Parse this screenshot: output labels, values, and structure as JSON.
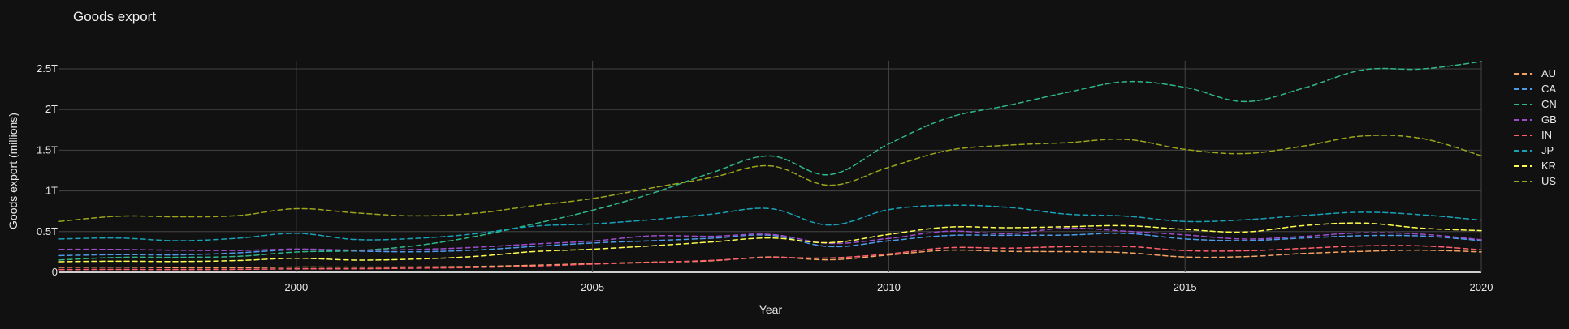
{
  "chart_data": {
    "type": "line",
    "title": "Goods export",
    "xlabel": "Year",
    "ylabel": "Goods export (millions)",
    "x": [
      1996,
      1997,
      1998,
      1999,
      2000,
      2001,
      2002,
      2003,
      2004,
      2005,
      2006,
      2007,
      2008,
      2009,
      2010,
      2011,
      2012,
      2013,
      2014,
      2015,
      2016,
      2017,
      2018,
      2019,
      2020
    ],
    "xlim": [
      1996,
      2020
    ],
    "ylim": [
      0,
      2600000
    ],
    "x_ticks": [
      2000,
      2005,
      2010,
      2015,
      2020
    ],
    "x_tick_labels": [
      "2000",
      "2005",
      "2010",
      "2015",
      "2020"
    ],
    "y_ticks": [
      0,
      500000,
      1000000,
      1500000,
      2000000,
      2500000
    ],
    "y_tick_labels": [
      "0",
      "0.5T",
      "1T",
      "1.5T",
      "2T",
      "2.5T"
    ],
    "grid": true,
    "legend_position": "right",
    "series": [
      {
        "name": "AU",
        "color": "#f4a261",
        "values": [
          60000,
          62000,
          56000,
          56000,
          64000,
          63000,
          65000,
          71000,
          86000,
          106000,
          124000,
          141000,
          188000,
          154000,
          213000,
          271000,
          257000,
          253000,
          241000,
          188000,
          192000,
          231000,
          257000,
          272000,
          250000
        ]
      },
      {
        "name": "CA",
        "color": "#4c9be8",
        "values": [
          205000,
          217000,
          214000,
          238000,
          277000,
          261000,
          252000,
          272000,
          317000,
          360000,
          388000,
          418000,
          455000,
          316000,
          387000,
          452000,
          455000,
          458000,
          478000,
          410000,
          390000,
          421000,
          450000,
          446000,
          389000
        ]
      },
      {
        "name": "CN",
        "color": "#2eb88a",
        "values": [
          151000,
          183000,
          184000,
          195000,
          249000,
          266000,
          326000,
          438000,
          593000,
          762000,
          969000,
          1220000,
          1430000,
          1200000,
          1578000,
          1898000,
          2049000,
          2209000,
          2342000,
          2273000,
          2098000,
          2263000,
          2487000,
          2499000,
          2590000
        ]
      },
      {
        "name": "GB",
        "color": "#9b4dca",
        "values": [
          282000,
          281000,
          271000,
          268000,
          285000,
          273000,
          280000,
          306000,
          347000,
          384000,
          448000,
          442000,
          466000,
          356000,
          416000,
          505000,
          475000,
          542000,
          505000,
          460000,
          409000,
          441000,
          485000,
          468000,
          400000
        ]
      },
      {
        "name": "IN",
        "color": "#ff5f6d",
        "values": [
          33000,
          35000,
          33000,
          36000,
          42000,
          43000,
          50000,
          59000,
          76000,
          100000,
          121000,
          146000,
          182000,
          176000,
          226000,
          302000,
          296000,
          315000,
          318000,
          267000,
          264000,
          294000,
          324000,
          324000,
          276000
        ]
      },
      {
        "name": "JP",
        "color": "#17a2b8",
        "values": [
          410000,
          421000,
          388000,
          418000,
          479000,
          403000,
          416000,
          472000,
          566000,
          595000,
          647000,
          714000,
          782000,
          581000,
          770000,
          823000,
          799000,
          715000,
          690000,
          625000,
          645000,
          698000,
          738000,
          706000,
          641000
        ]
      },
      {
        "name": "KR",
        "color": "#ffff4d",
        "values": [
          130000,
          136000,
          132000,
          144000,
          172000,
          150000,
          162000,
          194000,
          254000,
          284000,
          325000,
          372000,
          422000,
          364000,
          466000,
          555000,
          548000,
          560000,
          573000,
          527000,
          495000,
          574000,
          605000,
          542000,
          512000
        ]
      },
      {
        "name": "US",
        "color": "#9aa51a",
        "values": [
          625000,
          689000,
          682000,
          696000,
          782000,
          730000,
          693000,
          724000,
          818000,
          906000,
          1037000,
          1163000,
          1308000,
          1070000,
          1290000,
          1498000,
          1562000,
          1593000,
          1633000,
          1510000,
          1459000,
          1551000,
          1675000,
          1644000,
          1432000
        ]
      }
    ]
  }
}
